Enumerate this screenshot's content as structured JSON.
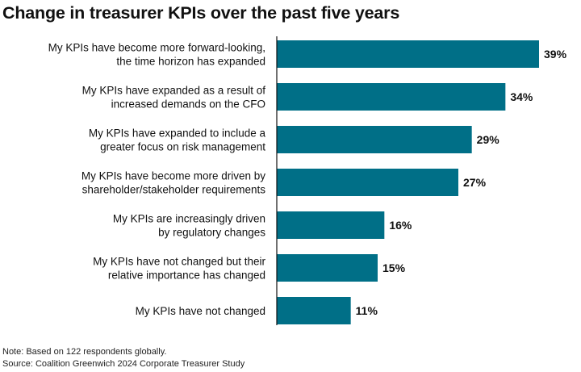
{
  "chart_data": {
    "type": "bar",
    "orientation": "horizontal",
    "title": "Change in treasurer KPIs over the past five years",
    "categories": [
      [
        "My KPIs have become more forward-looking,",
        "the time horizon has expanded"
      ],
      [
        "My KPIs have expanded as a result of",
        "increased demands on the CFO"
      ],
      [
        "My KPIs have expanded to include a",
        "greater focus on risk management"
      ],
      [
        "My KPIs have become more driven by",
        "shareholder/stakeholder requirements"
      ],
      [
        "My KPIs are increasingly driven",
        "by regulatory changes"
      ],
      [
        "My KPIs have not changed but their",
        "relative importance has changed"
      ],
      [
        "My KPIs have not changed"
      ]
    ],
    "values": [
      39,
      34,
      29,
      27,
      16,
      15,
      11
    ],
    "data_labels": [
      "39%",
      "34%",
      "29%",
      "27%",
      "16%",
      "15%",
      "11%"
    ],
    "unit": "%",
    "xlim": [
      0,
      39
    ],
    "grid": false,
    "color": "#006f87"
  },
  "notes": {
    "note": "Note: Based on 122 respondents globally.",
    "source": "Source: Coalition Greenwich 2024 Corporate Treasurer Study"
  }
}
